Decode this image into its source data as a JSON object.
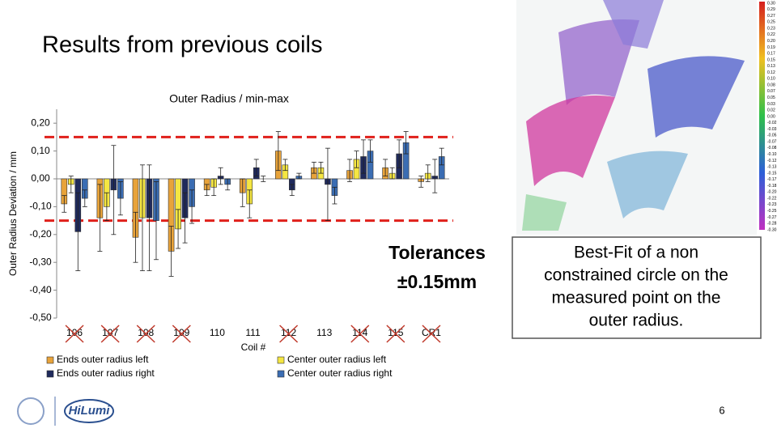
{
  "slide": {
    "title": "Results from previous coils",
    "textbox": [
      "Best-Fit of a non",
      "constrained circle on the",
      "measured point on the",
      "outer radius."
    ],
    "page_number": "6",
    "logo_text": "HiLumi",
    "colorbar_labels": [
      "0.30",
      "0.29",
      "0.27",
      "0.25",
      "0.23",
      "0.22",
      "0.20",
      "0.19",
      "0.17",
      "0.15",
      "0.13",
      "0.12",
      "0.10",
      "0.08",
      "0.07",
      "0.05",
      "0.03",
      "0.02",
      "0.00",
      "-0.02",
      "-0.03",
      "-0.05",
      "-0.07",
      "-0.08",
      "-0.10",
      "-0.12",
      "-0.13",
      "-0.15",
      "-0.17",
      "-0.18",
      "-0.20",
      "-0.22",
      "-0.23",
      "-0.25",
      "-0.27",
      "-0.28",
      "-0.30"
    ]
  },
  "chart_data": {
    "type": "bar",
    "title": "Outer Radius / min-max",
    "x_label": "Coil #",
    "y_label": "Outer Radius Deviation / mm",
    "categories": [
      "106",
      "107",
      "108",
      "109",
      "110",
      "111",
      "112",
      "113",
      "114",
      "115",
      "CR1"
    ],
    "crossed": [
      true,
      true,
      true,
      true,
      false,
      false,
      true,
      false,
      true,
      true,
      true
    ],
    "series": [
      {
        "name": "Ends outer radius left",
        "color": "#e8a33a",
        "values": [
          -0.09,
          -0.14,
          -0.21,
          -0.26,
          -0.04,
          -0.05,
          0.1,
          0.04,
          0.03,
          0.04,
          -0.01
        ],
        "errors": [
          0.03,
          0.12,
          0.09,
          0.09,
          0.02,
          0.05,
          0.07,
          0.02,
          0.04,
          0.03,
          0.02
        ]
      },
      {
        "name": "Center outer radius left",
        "color": "#f5e642",
        "values": [
          -0.02,
          -0.1,
          -0.14,
          -0.18,
          -0.03,
          -0.09,
          0.05,
          0.04,
          0.07,
          0.02,
          0.02
        ],
        "errors": [
          0.03,
          0.05,
          0.19,
          0.07,
          0.03,
          0.05,
          0.02,
          0.02,
          0.03,
          0.02,
          0.03
        ]
      },
      {
        "name": "Ends outer radius right",
        "color": "#1f2a5c",
        "values": [
          -0.19,
          -0.04,
          -0.14,
          -0.14,
          0.01,
          0.04,
          -0.04,
          -0.02,
          0.08,
          0.09,
          0.01
        ],
        "errors": [
          0.14,
          0.16,
          0.19,
          0.09,
          0.03,
          0.03,
          0.02,
          0.13,
          0.06,
          0.05,
          0.06
        ]
      },
      {
        "name": "Center outer radius right",
        "color": "#3b6db3",
        "values": [
          -0.07,
          -0.07,
          -0.15,
          -0.1,
          -0.02,
          0.0,
          0.01,
          -0.06,
          0.1,
          0.13,
          0.08
        ],
        "errors": [
          0.03,
          0.06,
          0.14,
          0.06,
          0.02,
          0.01,
          0.01,
          0.03,
          0.04,
          0.04,
          0.03
        ]
      }
    ],
    "ylim": [
      -0.5,
      0.25
    ],
    "yticks": [
      {
        "value": 0.2,
        "label": "0,20"
      },
      {
        "value": 0.1,
        "label": "0,10"
      },
      {
        "value": 0,
        "label": "0,00"
      },
      {
        "value": -0.1,
        "label": "-0,10"
      },
      {
        "value": -0.2,
        "label": "-0,20"
      },
      {
        "value": -0.3,
        "label": "-0,30"
      },
      {
        "value": -0.4,
        "label": "-0,40"
      },
      {
        "value": -0.5,
        "label": "-0,50"
      }
    ],
    "reference_lines": [
      0.15,
      -0.15
    ],
    "annotation": [
      "Tolerances",
      "±0.15mm"
    ]
  }
}
